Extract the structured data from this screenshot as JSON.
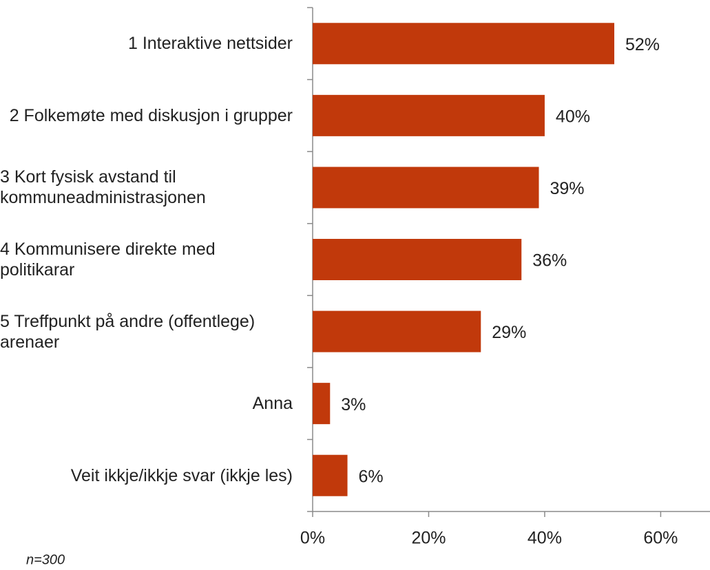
{
  "chart_data": {
    "type": "hbar",
    "categories": [
      "1 Interaktive nettsider",
      "2 Folkemøte med diskusjon i grupper",
      "3 Kort fysisk avstand til kommuneadministrasjonen",
      "4 Kommunisere direkte med politikarar",
      "5 Treffpunkt på andre (offentlege) arenaer",
      "Anna",
      "Veit ikkje/ikkje svar (ikkje les)"
    ],
    "values": [
      52,
      40,
      39,
      36,
      29,
      3,
      6
    ],
    "value_labels": [
      "52%",
      "40%",
      "39%",
      "36%",
      "29%",
      "3%",
      "6%"
    ],
    "color": "#c1390b",
    "xlim": [
      0,
      68.5
    ],
    "xticks": [
      {
        "value": 0,
        "label": "0%"
      },
      {
        "value": 20,
        "label": "20%"
      },
      {
        "value": 40,
        "label": "40%"
      },
      {
        "value": 60,
        "label": "60%"
      }
    ],
    "note": "n=300"
  }
}
